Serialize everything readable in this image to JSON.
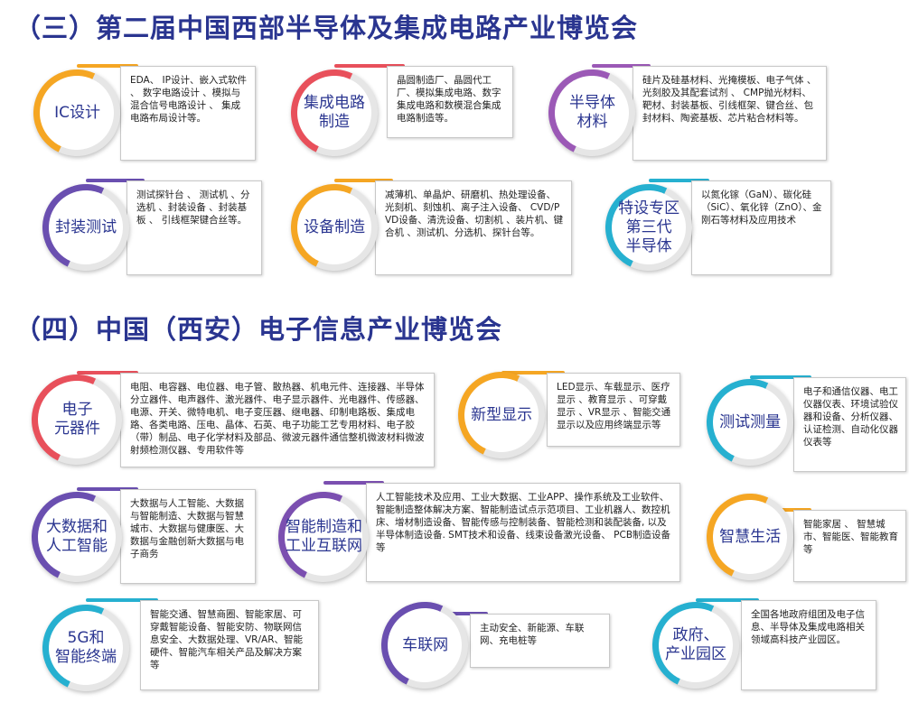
{
  "sections": [
    {
      "title": "（三）第二届中国西部半导体及集成电路产业博览会",
      "items": [
        {
          "label": [
            "IC设计"
          ],
          "text": "EDA、 IP设计、嵌入式软件 、 数字电路设计 、模拟与混合信号电路设计 、 集成电路布局设计等。"
        },
        {
          "label": [
            "集成电路",
            "制造"
          ],
          "text": "晶圆制造厂、晶圆代工厂、模拟集成电路、数字集成电路和数模混合集成电路制造等。"
        },
        {
          "label": [
            "半导体",
            "材料"
          ],
          "text": "硅片及硅基材料、光掩模板、电子气体 、 光刻胶及其配套试剂 、 CMP抛光材料、靶材、封装基板、引线框架、键合丝、包封材料、陶瓷基板、芯片粘合材料等。"
        },
        {
          "label": [
            "封装测试"
          ],
          "text": "测试探针台 、 测试机 、分选机 、封装设备 、封装基板 、 引线框架键合丝等。"
        },
        {
          "label": [
            "设备制造"
          ],
          "text": "减薄机、单晶炉、研磨机、热处理设备、光刻机、刻蚀机、离子注入设备、 CVD/P VD设备、清洗设备、切割机 、装片机、键合机 、测试机、分选机、探针台等。"
        },
        {
          "label": [
            "特设专区",
            "第三代",
            "半导体"
          ],
          "text": "以氮化镓（GaN）、碳化硅（SiC）、氧化锌（ZnO）、金刚石等材料及应用技术"
        }
      ]
    },
    {
      "title": "（四）中国（西安）电子信息产业博览会",
      "items": [
        {
          "label": [
            "电子",
            "元器件"
          ],
          "text": "电阻、电容器、电位器、电子管、散热器、机电元件、连接器、半导体分立器件、电声器件、激光器件、电子显示器件、光电器件、传感器、电源、开关、微特电机、电子变压器、继电器、印制电路板、集成电路、各类电路、压电、晶体、石英、电子功能工艺专用材料、电子胶（带）制品、电子化学材料及部品、微波元器件通信整机微波材料微波射频检测仪器、专用软件等"
        },
        {
          "label": [
            "新型显示"
          ],
          "text": "LED显示、车载显示、医疗显示 、教育显示 、可穿戴显示 、VR显示 、智能交通显示以及应用终端显示等"
        },
        {
          "label": [
            "测试测量"
          ],
          "text": "电子和通信仪器、电工仪器仪表、环境试验仪器和设备、分析仪器、认证检测、自动化仪器仪表等"
        },
        {
          "label": [
            "大数据和",
            "人工智能"
          ],
          "text": "大数据与人工智能、大数据与智能制造、大数据与智慧城市、大数据与健康医、大数据与金融创新大数据与电子商务"
        },
        {
          "label": [
            "智能制造和",
            "工业互联网"
          ],
          "text": "人工智能技术及应用、工业大数据、工业APP、操作系统及工业软件、智能制造整体解决方案、智能制造试点示范项目、工业机器人、数控机床、增材制造设备、智能传感与控制装备、智能检测和装配装备, 以及半导体制造设备. SMT技术和设备、线束设备激光设备、 PCB制造设备等"
        },
        {
          "label": [
            "智慧生活"
          ],
          "text": "智能家居 、 智慧城市、智能医、智能教育等"
        },
        {
          "label": [
            "5G和",
            "智能终端"
          ],
          "text": "智能交通、智慧商圈、智能家居、可穿戴智能设备、智能安防、物联网信息安全、大数据处理、VR/AR、智能硬件、智能汽车相关产品及解决方案等"
        },
        {
          "label": [
            "车联网"
          ],
          "text": "主动安全、新能源、车联网、充电桩等"
        },
        {
          "label": [
            "政府、",
            "产业园区"
          ],
          "text": "全国各地政府组团及电子信息、半导体及集成电路相关领域高科技产业园区。"
        }
      ]
    }
  ]
}
